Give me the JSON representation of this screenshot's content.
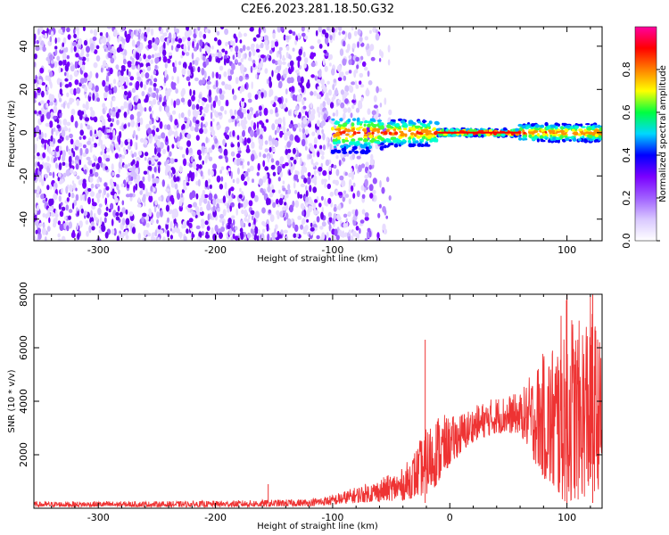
{
  "figure": {
    "title": "C2E6.2023.281.18.50.G32"
  },
  "chart_data": [
    {
      "type": "heatmap",
      "name": "spectrogram",
      "xlabel": "Height of straight line (km)",
      "ylabel": "Frequency (Hz)",
      "xlim": [
        -355,
        130
      ],
      "ylim": [
        -50,
        49
      ],
      "xticks": [
        -300,
        -200,
        -100,
        0,
        100
      ],
      "yticks": [
        -40,
        -20,
        0,
        20,
        40
      ],
      "colorbar": {
        "label": "Normalized spectral amplitude",
        "range": [
          0.0,
          1.0
        ],
        "ticks": [
          0.0,
          0.2,
          0.4,
          0.6,
          0.8
        ],
        "colormap": [
          "#ffffff",
          "#d9c8ff",
          "#a060ff",
          "#7a00ff",
          "#0000ff",
          "#00d8ff",
          "#00ff40",
          "#ffff00",
          "#ff8000",
          "#ff0000",
          "#ff00a0"
        ]
      },
      "description_regions": [
        {
          "x_range": [
            -355,
            -100
          ],
          "frequency_range": [
            -50,
            49
          ],
          "amplitude": "low-moderate broadband noise"
        },
        {
          "x_range": [
            -100,
            -50
          ],
          "frequency_range": [
            -50,
            49
          ],
          "amplitude": "fading broadband noise"
        },
        {
          "x_range": [
            -100,
            130
          ],
          "frequency_center": 0,
          "amplitude": "strong narrowband signal near 0 Hz, peak ~1.0"
        }
      ]
    },
    {
      "type": "line",
      "name": "snr",
      "xlabel": "Height of straight line (km)",
      "ylabel": "SNR (10 * v/v)",
      "xlim": [
        -355,
        130
      ],
      "ylim": [
        0,
        8000
      ],
      "xticks": [
        -300,
        -200,
        -100,
        0,
        100
      ],
      "yticks": [
        2000,
        4000,
        6000,
        8000
      ],
      "color": "#ee3333",
      "envelope_points": [
        {
          "x": -355,
          "lo": 50,
          "hi": 250
        },
        {
          "x": -300,
          "lo": 50,
          "hi": 260
        },
        {
          "x": -250,
          "lo": 50,
          "hi": 260
        },
        {
          "x": -200,
          "lo": 50,
          "hi": 280
        },
        {
          "x": -150,
          "lo": 60,
          "hi": 320
        },
        {
          "x": -120,
          "lo": 80,
          "hi": 350
        },
        {
          "x": -100,
          "lo": 120,
          "hi": 500
        },
        {
          "x": -80,
          "lo": 200,
          "hi": 800
        },
        {
          "x": -60,
          "lo": 250,
          "hi": 1100
        },
        {
          "x": -40,
          "lo": 300,
          "hi": 1500
        },
        {
          "x": -30,
          "lo": 400,
          "hi": 2200
        },
        {
          "x": -20,
          "lo": 500,
          "hi": 3000
        },
        {
          "x": -10,
          "lo": 900,
          "hi": 3600
        },
        {
          "x": 0,
          "lo": 1600,
          "hi": 3400
        },
        {
          "x": 20,
          "lo": 2500,
          "hi": 3800
        },
        {
          "x": 40,
          "lo": 2800,
          "hi": 4200
        },
        {
          "x": 60,
          "lo": 2800,
          "hi": 4300
        },
        {
          "x": 75,
          "lo": 1500,
          "hi": 5500
        },
        {
          "x": 90,
          "lo": 400,
          "hi": 6500
        },
        {
          "x": 100,
          "lo": 200,
          "hi": 8000
        },
        {
          "x": 110,
          "lo": 300,
          "hi": 7000
        },
        {
          "x": 120,
          "lo": 500,
          "hi": 8000
        },
        {
          "x": 130,
          "lo": 800,
          "hi": 6000
        }
      ],
      "notable_spikes": [
        {
          "x": -155,
          "y": 900
        },
        {
          "x": -21,
          "y": 6300
        },
        {
          "x": 100,
          "y": 8000
        },
        {
          "x": 122,
          "y": 8000
        }
      ]
    }
  ]
}
